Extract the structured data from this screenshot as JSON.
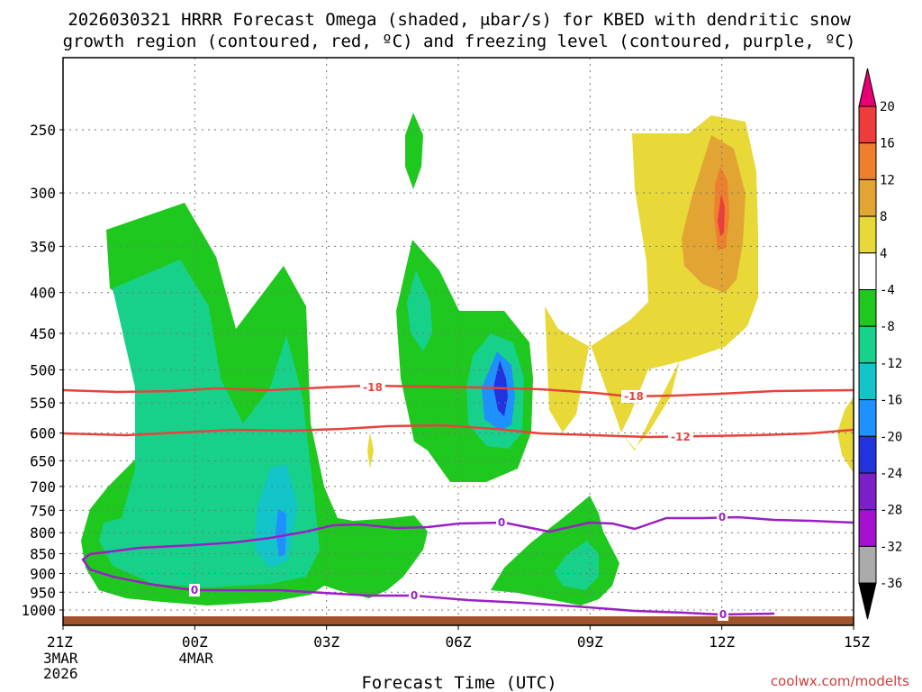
{
  "chart_data": {
    "type": "heatmap",
    "title_line1": "2026030321 HRRR Forecast Omega (shaded, μbar/s) for KBED with dendritic snow",
    "title_line2": "growth region (contoured, red, ºC) and freezing level (contoured, purple, ºC)",
    "xlabel": "Forecast Time (UTC)",
    "ylabel": "",
    "credit": "coolwx.com/modelts",
    "x_ticks": [
      {
        "label": "21Z",
        "sub": [
          "3MAR",
          "2026"
        ]
      },
      {
        "label": "00Z",
        "sub": [
          "4MAR"
        ]
      },
      {
        "label": "03Z",
        "sub": []
      },
      {
        "label": "06Z",
        "sub": []
      },
      {
        "label": "09Z",
        "sub": []
      },
      {
        "label": "12Z",
        "sub": []
      },
      {
        "label": "15Z",
        "sub": []
      }
    ],
    "y_ticks": [
      250,
      300,
      350,
      400,
      450,
      500,
      550,
      600,
      650,
      700,
      750,
      800,
      850,
      900,
      950,
      1000
    ],
    "y_scale": "log-pressure",
    "colorbar": {
      "labels": [
        "20",
        "16",
        "12",
        "8",
        "4",
        "-4",
        "-8",
        "-12",
        "-16",
        "-20",
        "-24",
        "-28",
        "-32",
        "-36"
      ],
      "colors": [
        "#e60073",
        "#ee3b3b",
        "#ee7f2d",
        "#e2a534",
        "#e8d838",
        "#ffffff",
        "#1ec81e",
        "#17d18a",
        "#13c4c8",
        "#1e90ff",
        "#2233dd",
        "#7b1fc9",
        "#a512cf",
        "#aaaaaa",
        "#000000"
      ]
    },
    "contour_labels": {
      "dgz_upper": "-18",
      "dgz_lower": "-12",
      "freezing": "0"
    },
    "colors": {
      "dgz": "#e8423c",
      "freezing": "#9a1fc4",
      "ground": "#a0522d",
      "green": "#1ec81e",
      "teal": "#17d18a",
      "cyan": "#13c4c8",
      "blue": "#1e90ff",
      "darkblue": "#2233dd",
      "yellow": "#e8d838",
      "orange_light": "#e2a534",
      "orange": "#ee7f2d",
      "red": "#ee3b3b"
    }
  }
}
